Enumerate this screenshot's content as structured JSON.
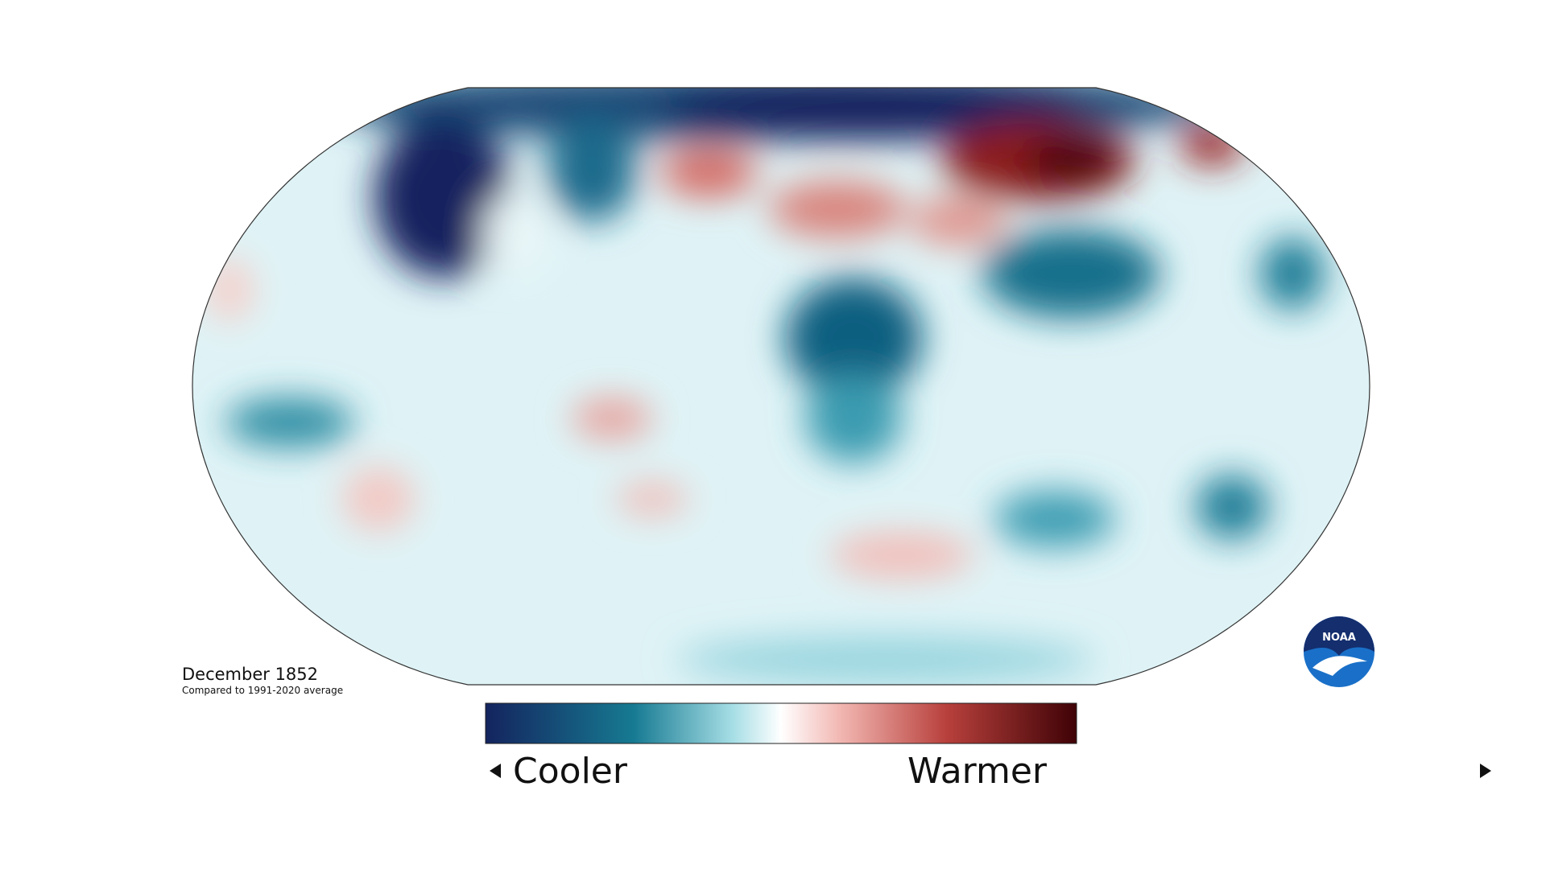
{
  "map": {
    "title": "December 1852",
    "subtitle": "Compared to 1991-2020 average"
  },
  "legend": {
    "low": "Cooler",
    "high": "Warmer"
  },
  "logo": {
    "text": "NOAA"
  }
}
